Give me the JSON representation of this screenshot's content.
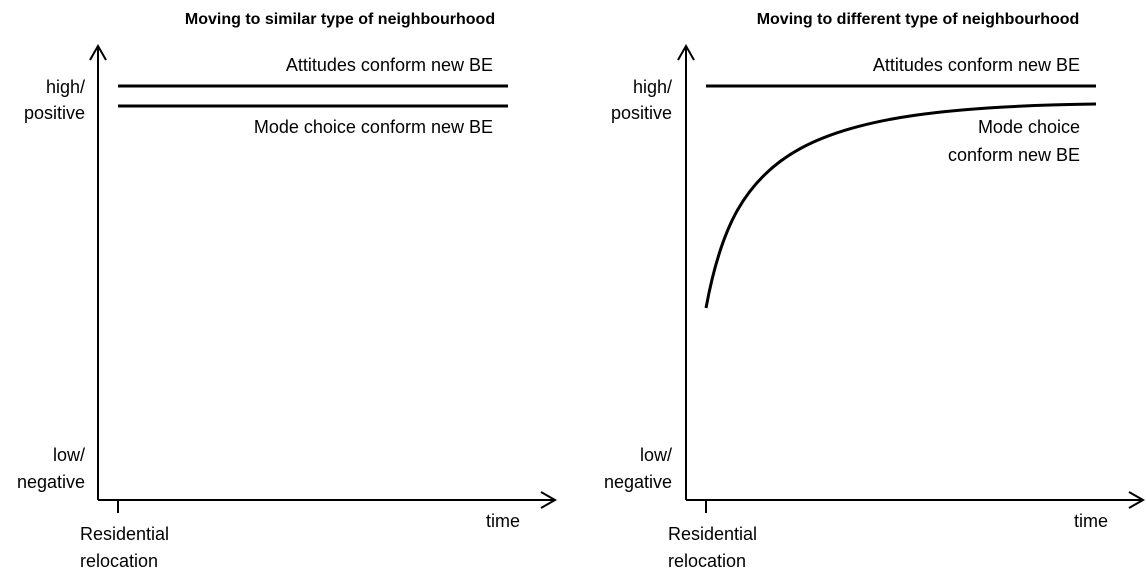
{
  "panels": [
    {
      "title": "Moving to similar type of neighbourhood",
      "y_high": [
        "high/",
        "positive"
      ],
      "y_low": [
        "low/",
        "negative"
      ],
      "x_origin": [
        "Residential",
        "relocation"
      ],
      "x_label": "time",
      "line_labels": [
        [
          "Attitudes conform new BE"
        ],
        [
          "Mode choice conform new BE"
        ]
      ]
    },
    {
      "title": "Moving to different type of neighbourhood",
      "y_high": [
        "high/",
        "positive"
      ],
      "y_low": [
        "low/",
        "negative"
      ],
      "x_origin": [
        "Residential",
        "relocation"
      ],
      "x_label": "time",
      "line_labels": [
        [
          "Attitudes conform new BE"
        ],
        [
          "Mode choice",
          "conform new BE"
        ]
      ]
    }
  ]
}
